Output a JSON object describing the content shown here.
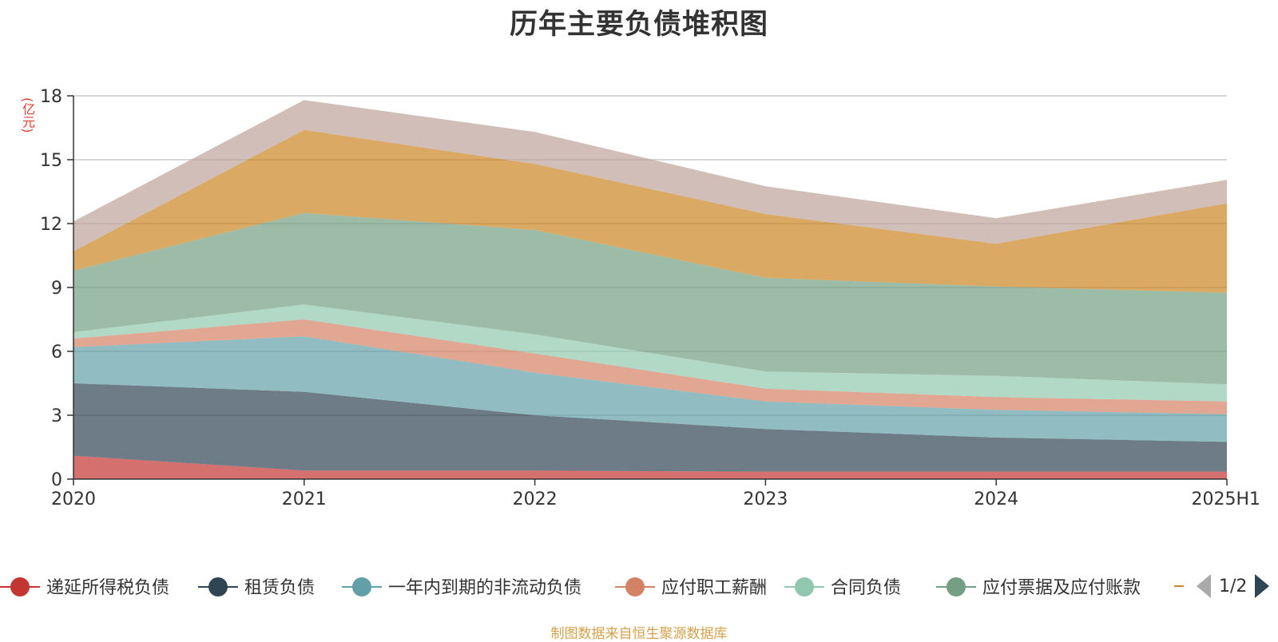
{
  "chart_data": {
    "type": "area",
    "stacked": true,
    "title": "历年主要负债堆积图",
    "ylabel": "(亿元)",
    "xlabel": "",
    "categories": [
      "2020",
      "2021",
      "2022",
      "2023",
      "2024",
      "2025H1"
    ],
    "ylim": [
      0,
      18
    ],
    "yticks": [
      0,
      3,
      6,
      9,
      12,
      15,
      18
    ],
    "grid": true,
    "legend_position": "bottom",
    "series": [
      {
        "name": "递延所得税负债",
        "color": "#c23531",
        "values": [
          1.1,
          0.4,
          0.4,
          0.35,
          0.35,
          0.35
        ]
      },
      {
        "name": "租赁负债",
        "color": "#2f4554",
        "values": [
          3.4,
          3.7,
          2.6,
          2.0,
          1.6,
          1.4
        ]
      },
      {
        "name": "一年内到期的非流动负债",
        "color": "#61a0a8",
        "values": [
          1.7,
          2.6,
          2.0,
          1.3,
          1.3,
          1.3
        ]
      },
      {
        "name": "应付职工薪酬",
        "color": "#d48265",
        "values": [
          0.4,
          0.8,
          0.9,
          0.6,
          0.6,
          0.6
        ]
      },
      {
        "name": "合同负债",
        "color": "#91c7ae",
        "values": [
          0.3,
          0.7,
          0.9,
          0.8,
          1.0,
          0.8
        ]
      },
      {
        "name": "应付票据及应付账款",
        "color": "#749f83",
        "values": [
          2.9,
          4.3,
          4.9,
          4.4,
          4.2,
          4.3
        ]
      },
      {
        "name": "",
        "color": "#ca8622",
        "values": [
          0.9,
          3.9,
          3.1,
          3.0,
          2.0,
          4.2
        ]
      },
      {
        "name": "",
        "color": "#bda29a",
        "values": [
          1.4,
          1.4,
          1.5,
          1.3,
          1.2,
          1.1
        ]
      }
    ]
  },
  "legend": {
    "pager_text": "1/2"
  },
  "source_note": "制图数据来自恒生聚源数据库"
}
